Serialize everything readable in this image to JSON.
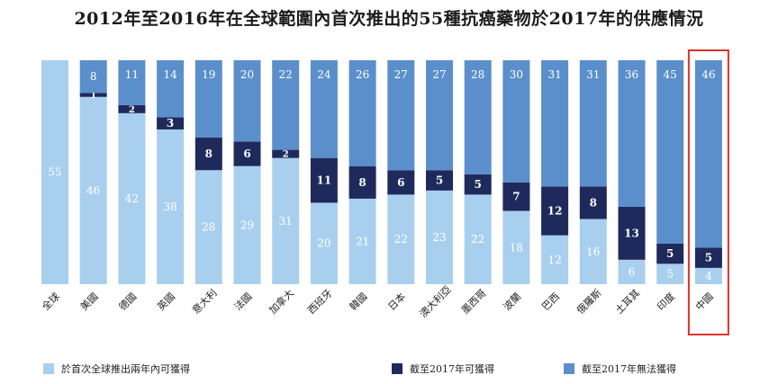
{
  "chart_data": {
    "type": "bar",
    "stacked": true,
    "title": "2012年至2016年在全球範圍內首次推出的55種抗癌藥物於2017年的供應情況",
    "categories": [
      "全球",
      "美國",
      "德國",
      "英國",
      "意大利",
      "法國",
      "加拿大",
      "西班牙",
      "韓國",
      "日本",
      "澳大利亞",
      "墨西哥",
      "波蘭",
      "巴西",
      "俄羅斯",
      "土耳其",
      "印度",
      "中國"
    ],
    "series": [
      {
        "name": "於首次全球推出兩年內可獲得",
        "color": "#a9cfef",
        "values": [
          55,
          46,
          42,
          38,
          28,
          29,
          31,
          20,
          21,
          22,
          23,
          22,
          18,
          12,
          16,
          6,
          5,
          4
        ]
      },
      {
        "name": "截至2017年可獲得",
        "color": "#1f2a5c",
        "values": [
          0,
          1,
          2,
          3,
          8,
          6,
          2,
          11,
          8,
          6,
          5,
          5,
          7,
          12,
          8,
          13,
          5,
          5
        ]
      },
      {
        "name": "截至2017年無法獲得",
        "color": "#5b8fcb",
        "values": [
          0,
          8,
          11,
          14,
          19,
          20,
          22,
          24,
          26,
          27,
          27,
          28,
          30,
          31,
          31,
          36,
          45,
          46
        ]
      }
    ],
    "ylim": [
      0,
      55
    ],
    "legend_position": "bottom",
    "highlight_category": "中國",
    "highlight_color": "#d9342b"
  }
}
